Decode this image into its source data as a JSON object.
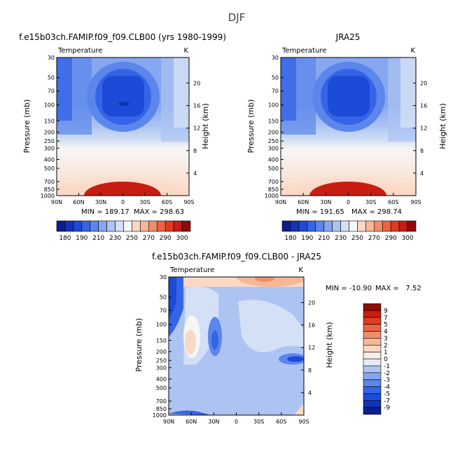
{
  "figure_title": "DJF",
  "chart_data": [
    {
      "type": "contour",
      "title": "f.e15b03ch.FAMIP.f09_f09.CLB00 (yrs 1980-1999)",
      "subtitle_left": "Temperature",
      "subtitle_right": "K",
      "xlabel": "",
      "ylabel": "Pressure (mb)",
      "y2label": "Height (km)",
      "x_ticks": [
        "90N",
        "60N",
        "30N",
        "0",
        "30S",
        "60S",
        "90S"
      ],
      "y_ticks": [
        "30",
        "50",
        "70",
        "100",
        "150",
        "200",
        "250",
        "300",
        "400",
        "500",
        "700",
        "850",
        "1000"
      ],
      "height_ticks": [
        "20",
        "16",
        "12",
        "8",
        "4"
      ],
      "min_label": "MIN = 189.17",
      "max_label": "MAX = 298.63",
      "min": 189.17,
      "max": 298.63
    },
    {
      "type": "contour",
      "title": "JRA25",
      "subtitle_left": "Temperature",
      "subtitle_right": "K",
      "xlabel": "",
      "ylabel": "Pressure (mb)",
      "y2label": "Height (km)",
      "x_ticks": [
        "90N",
        "60N",
        "30N",
        "0",
        "30S",
        "60S",
        "90S"
      ],
      "y_ticks": [
        "30",
        "50",
        "70",
        "100",
        "150",
        "200",
        "250",
        "300",
        "400",
        "500",
        "700",
        "850",
        "1000"
      ],
      "height_ticks": [
        "20",
        "16",
        "12",
        "8",
        "4"
      ],
      "min_label": "MIN = 191.65",
      "max_label": "MAX = 298.74",
      "min": 191.65,
      "max": 298.74
    },
    {
      "type": "contour",
      "title": "f.e15b03ch.FAMIP.f09_f09.CLB00 - JRA25",
      "subtitle_left": "Temperature",
      "subtitle_right": "K",
      "xlabel": "",
      "ylabel": "Pressure (mb)",
      "y2label": "Height (km)",
      "x_ticks": [
        "90N",
        "60N",
        "30N",
        "0",
        "30S",
        "60S",
        "90S"
      ],
      "y_ticks": [
        "30",
        "50",
        "70",
        "100",
        "150",
        "200",
        "250",
        "300",
        "400",
        "500",
        "700",
        "850",
        "1000"
      ],
      "height_ticks": [
        "20",
        "16",
        "12",
        "8",
        "4"
      ],
      "min_label": "MIN = -10.90",
      "max_label": "MAX =   7.52",
      "min": -10.9,
      "max": 7.52
    }
  ],
  "colorbar_abs": {
    "labels": [
      "180",
      "190",
      "210",
      "230",
      "250",
      "270",
      "290",
      "300"
    ],
    "colors": [
      "#0a1f8f",
      "#1233b8",
      "#1e4ad8",
      "#3565e6",
      "#5b86ec",
      "#86a6ef",
      "#adc4f2",
      "#d3e0f5",
      "#f7f7f7",
      "#fbd8c4",
      "#f8b696",
      "#f28d6b",
      "#eb6344",
      "#e03a22",
      "#c81d12",
      "#8e0b0b"
    ]
  },
  "colorbar_diff": {
    "labels": [
      "9",
      "7",
      "5",
      "4",
      "3",
      "2",
      "1",
      "0",
      "-1",
      "-2",
      "-3",
      "-4",
      "-5",
      "-7",
      "-9"
    ],
    "colors": [
      "#8e0b0b",
      "#c81d12",
      "#e03a22",
      "#eb6344",
      "#f28d6b",
      "#f8b696",
      "#fbd8c4",
      "#fdeee4",
      "#e4ecf8",
      "#adc4f2",
      "#86a6ef",
      "#5b86ec",
      "#3565e6",
      "#1e4ad8",
      "#1233b8",
      "#0a1f8f"
    ]
  }
}
